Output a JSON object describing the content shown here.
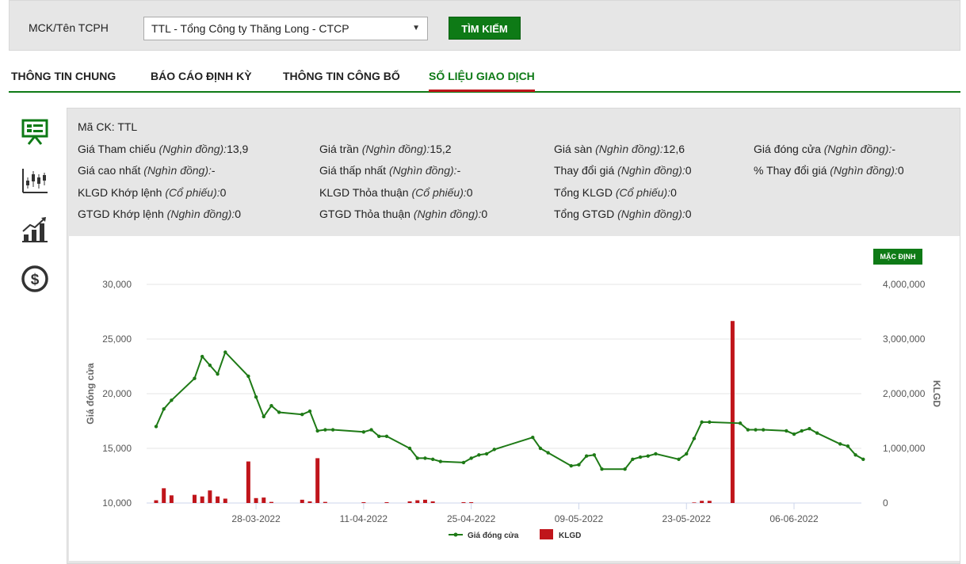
{
  "search": {
    "label": "MCK/Tên TCPH",
    "selected": "TTL - Tổng Công ty Thăng Long - CTCP",
    "button": "TÌM KIẾM"
  },
  "tabs": [
    {
      "label": "THÔNG TIN CHUNG"
    },
    {
      "label": "BÁO CÁO ĐỊNH KỲ"
    },
    {
      "label": "THÔNG TIN CÔNG BỐ"
    },
    {
      "label": "SỐ LIỆU GIAO DỊCH"
    }
  ],
  "sidebar_icons": [
    "presentation-icon",
    "candlestick-chart-icon",
    "bar-growth-chart-icon",
    "dollar-coin-icon"
  ],
  "info": {
    "ma_ck": {
      "label": "Mã CK:",
      "value": "TTL"
    },
    "unit_dong": "(Nghìn đồng):",
    "unit_cp": "(Cổ phiếu):",
    "gia_tham_chieu": {
      "label": "Giá Tham chiếu",
      "value": "13,9"
    },
    "gia_tran": {
      "label": "Giá trần",
      "value": "15,2"
    },
    "gia_san": {
      "label": "Giá sàn",
      "value": "12,6"
    },
    "gia_dong_cua": {
      "label": "Giá đóng cửa",
      "value": "-"
    },
    "gia_cao_nhat": {
      "label": "Giá cao nhất",
      "value": "-"
    },
    "gia_thap_nhat": {
      "label": "Giá thấp nhất",
      "value": "-"
    },
    "thay_doi_gia": {
      "label": "Thay đổi giá",
      "value": "0"
    },
    "pct_thay_doi_gia": {
      "label": "% Thay đổi giá",
      "value": "0"
    },
    "klgd_khop_lenh": {
      "label": "KLGD Khớp lệnh",
      "value": "0"
    },
    "klgd_thoa_thuan": {
      "label": "KLGD Thỏa thuận",
      "value": "0"
    },
    "tong_klgd": {
      "label": "Tổng KLGD",
      "value": "0"
    },
    "gtgd_khop_lenh": {
      "label": "GTGD Khớp lệnh",
      "value": "0"
    },
    "gtgd_thoa_thuan": {
      "label": "GTGD Thỏa thuận",
      "value": "0"
    },
    "tong_gtgd": {
      "label": "Tổng GTGD",
      "value": "0"
    }
  },
  "chart_button": "MẶC ĐỊNH",
  "colors": {
    "accent": "#0e7a16",
    "price_line": "#1e7a16",
    "volume_bar": "#c0151b",
    "active_tab_underline": "#c0151b"
  },
  "chart_data": {
    "type": "line",
    "ylabel": "Giá đóng cửa",
    "y2label": "KLGD",
    "ylim": [
      10000,
      30000
    ],
    "y2lim": [
      0,
      4000000
    ],
    "y_ticks": [
      "30,000",
      "25,000",
      "20,000",
      "15,000",
      "10,000"
    ],
    "y2_ticks": [
      "4,000,000",
      "3,000,000",
      "2,000,000",
      "1,000,000",
      "0"
    ],
    "x_ticks": [
      {
        "label": "28-03-2022",
        "day": 14
      },
      {
        "label": "11-04-2022",
        "day": 28
      },
      {
        "label": "25-04-2022",
        "day": 42
      },
      {
        "label": "09-05-2022",
        "day": 56
      },
      {
        "label": "23-05-2022",
        "day": 70
      },
      {
        "label": "06-06-2022",
        "day": 84
      }
    ],
    "x_range": [
      1,
      94
    ],
    "legend": [
      "Giá đóng cửa",
      "KLGD"
    ],
    "legend_position": "bottom",
    "series": [
      {
        "name": "Giá đóng cửa",
        "points": [
          [
            1,
            17000
          ],
          [
            2,
            18600
          ],
          [
            3,
            19400
          ],
          [
            6,
            21400
          ],
          [
            7,
            23400
          ],
          [
            8,
            22600
          ],
          [
            9,
            21800
          ],
          [
            10,
            23800
          ],
          [
            13,
            21600
          ],
          [
            14,
            19700
          ],
          [
            15,
            17900
          ],
          [
            16,
            18900
          ],
          [
            17,
            18300
          ],
          [
            20,
            18100
          ],
          [
            21,
            18400
          ],
          [
            22,
            16600
          ],
          [
            23,
            16700
          ],
          [
            24,
            16700
          ],
          [
            28,
            16500
          ],
          [
            29,
            16700
          ],
          [
            30,
            16100
          ],
          [
            31,
            16100
          ],
          [
            34,
            15000
          ],
          [
            35,
            14100
          ],
          [
            36,
            14100
          ],
          [
            37,
            14000
          ],
          [
            38,
            13800
          ],
          [
            41,
            13700
          ],
          [
            42,
            14100
          ],
          [
            43,
            14400
          ],
          [
            44,
            14500
          ],
          [
            45,
            14900
          ],
          [
            50,
            16000
          ],
          [
            51,
            15000
          ],
          [
            52,
            14600
          ],
          [
            55,
            13400
          ],
          [
            56,
            13500
          ],
          [
            57,
            14300
          ],
          [
            58,
            14400
          ],
          [
            59,
            13100
          ],
          [
            62,
            13100
          ],
          [
            63,
            14000
          ],
          [
            64,
            14200
          ],
          [
            65,
            14300
          ],
          [
            66,
            14500
          ],
          [
            69,
            14000
          ],
          [
            70,
            14500
          ],
          [
            71,
            15900
          ],
          [
            72,
            17400
          ],
          [
            73,
            17400
          ],
          [
            77,
            17300
          ],
          [
            78,
            16700
          ],
          [
            79,
            16700
          ],
          [
            80,
            16700
          ],
          [
            83,
            16600
          ],
          [
            84,
            16300
          ],
          [
            85,
            16600
          ],
          [
            86,
            16800
          ],
          [
            87,
            16400
          ],
          [
            90,
            15400
          ],
          [
            91,
            15200
          ],
          [
            92,
            14400
          ],
          [
            93,
            14000
          ]
        ]
      },
      {
        "name": "KLGD",
        "bars": [
          [
            1,
            50000
          ],
          [
            2,
            270000
          ],
          [
            3,
            140000
          ],
          [
            6,
            150000
          ],
          [
            7,
            120000
          ],
          [
            8,
            230000
          ],
          [
            9,
            120000
          ],
          [
            10,
            80000
          ],
          [
            13,
            760000
          ],
          [
            14,
            90000
          ],
          [
            15,
            100000
          ],
          [
            16,
            20000
          ],
          [
            20,
            60000
          ],
          [
            21,
            30000
          ],
          [
            22,
            820000
          ],
          [
            23,
            20000
          ],
          [
            28,
            15000
          ],
          [
            31,
            15000
          ],
          [
            34,
            30000
          ],
          [
            35,
            50000
          ],
          [
            36,
            60000
          ],
          [
            37,
            30000
          ],
          [
            41,
            15000
          ],
          [
            42,
            15000
          ],
          [
            71,
            10000
          ],
          [
            72,
            40000
          ],
          [
            73,
            40000
          ],
          [
            76,
            3330000
          ]
        ]
      }
    ]
  }
}
